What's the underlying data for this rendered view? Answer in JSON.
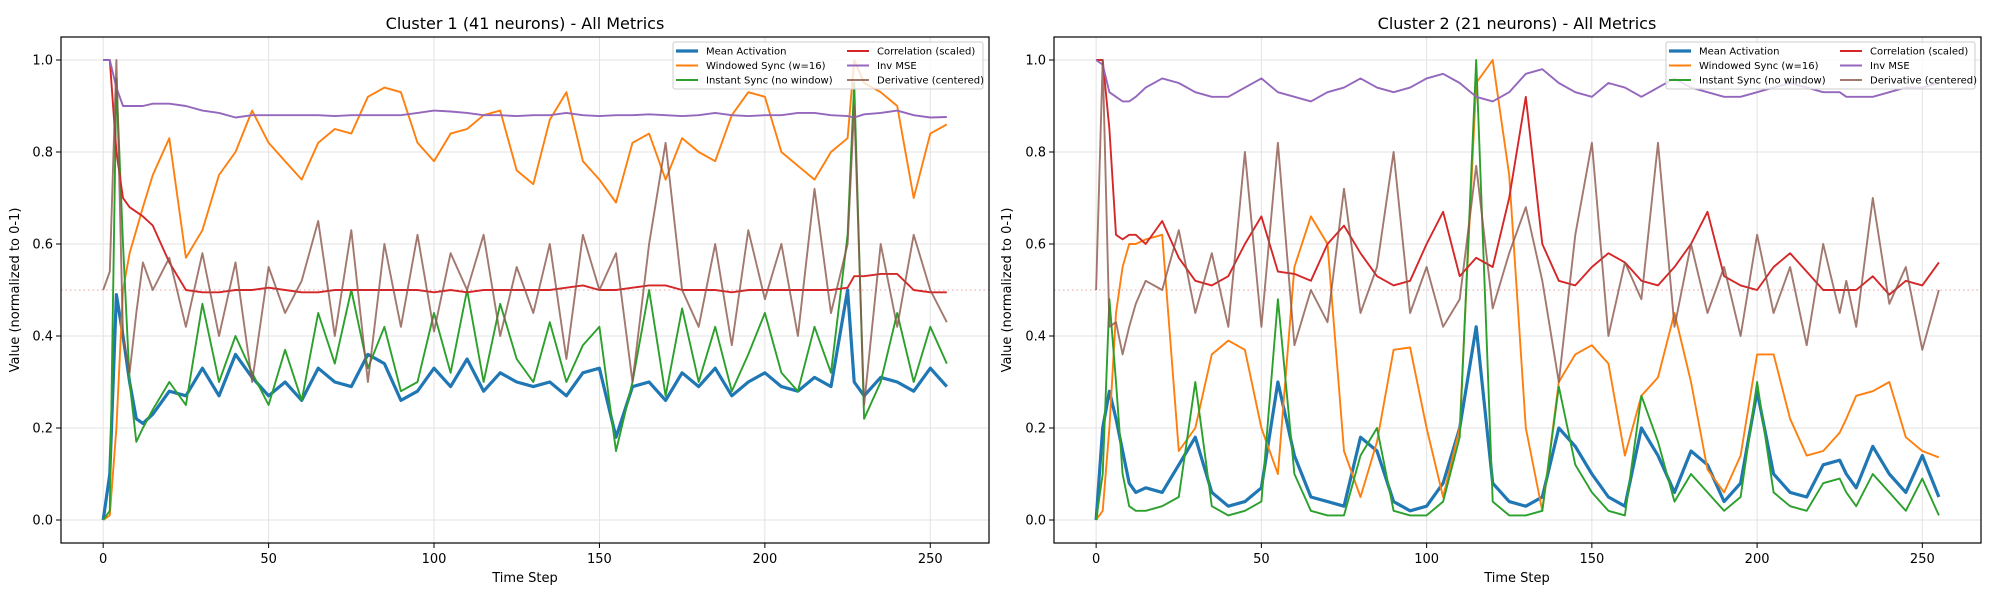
{
  "chart_data": [
    {
      "type": "line",
      "title": "Cluster 1 (41 neurons) - All Metrics",
      "xlabel": "Time Step",
      "ylabel": "Value (normalized to 0-1)",
      "xlim": [
        -12.75,
        267.75
      ],
      "ylim": [
        -0.05,
        1.05
      ],
      "xticks": [
        0,
        50,
        100,
        150,
        200,
        250
      ],
      "yticks": [
        "0.0",
        "0.2",
        "0.4",
        "0.6",
        "0.8",
        "1.0"
      ],
      "grid": true,
      "legend_position": "top-right",
      "reference_line": 0.5,
      "x": [
        0,
        2,
        4,
        6,
        8,
        10,
        12,
        15,
        20,
        25,
        30,
        35,
        40,
        45,
        50,
        55,
        60,
        65,
        70,
        75,
        80,
        85,
        90,
        95,
        100,
        105,
        110,
        115,
        120,
        125,
        130,
        135,
        140,
        145,
        150,
        155,
        160,
        165,
        170,
        175,
        180,
        185,
        190,
        195,
        200,
        205,
        210,
        215,
        220,
        225,
        227,
        230,
        235,
        240,
        245,
        250,
        255
      ],
      "series": [
        {
          "name": "Mean Activation",
          "color": "#1f77b4",
          "values": [
            0,
            0.1,
            0.49,
            0.4,
            0.3,
            0.22,
            0.21,
            0.23,
            0.28,
            0.27,
            0.33,
            0.27,
            0.36,
            0.31,
            0.27,
            0.3,
            0.26,
            0.33,
            0.3,
            0.29,
            0.36,
            0.34,
            0.26,
            0.28,
            0.33,
            0.29,
            0.35,
            0.28,
            0.32,
            0.3,
            0.29,
            0.3,
            0.27,
            0.32,
            0.33,
            0.18,
            0.29,
            0.3,
            0.26,
            0.32,
            0.29,
            0.33,
            0.27,
            0.3,
            0.32,
            0.29,
            0.28,
            0.31,
            0.29,
            0.5,
            0.3,
            0.27,
            0.31,
            0.3,
            0.28,
            0.33,
            0.29
          ]
        },
        {
          "name": "Windowed Sync (w=16)",
          "color": "#ff7f0e",
          "values": [
            0,
            0.01,
            0.2,
            0.5,
            0.58,
            0.63,
            0.68,
            0.75,
            0.83,
            0.57,
            0.63,
            0.75,
            0.8,
            0.89,
            0.82,
            0.78,
            0.74,
            0.82,
            0.85,
            0.84,
            0.92,
            0.94,
            0.93,
            0.82,
            0.78,
            0.84,
            0.85,
            0.88,
            0.89,
            0.76,
            0.73,
            0.87,
            0.93,
            0.78,
            0.74,
            0.69,
            0.82,
            0.84,
            0.74,
            0.83,
            0.8,
            0.78,
            0.88,
            0.93,
            0.92,
            0.8,
            0.77,
            0.74,
            0.8,
            0.83,
            1.0,
            0.95,
            0.93,
            0.9,
            0.7,
            0.84,
            0.86
          ]
        },
        {
          "name": "Instant Sync (no window)",
          "color": "#2ca02c",
          "values": [
            0,
            0.02,
            0.96,
            0.6,
            0.3,
            0.17,
            0.2,
            0.24,
            0.3,
            0.25,
            0.47,
            0.3,
            0.4,
            0.32,
            0.25,
            0.37,
            0.26,
            0.45,
            0.34,
            0.5,
            0.33,
            0.42,
            0.28,
            0.3,
            0.45,
            0.32,
            0.5,
            0.3,
            0.47,
            0.35,
            0.3,
            0.43,
            0.3,
            0.38,
            0.42,
            0.15,
            0.3,
            0.5,
            0.27,
            0.46,
            0.3,
            0.42,
            0.28,
            0.36,
            0.45,
            0.32,
            0.28,
            0.42,
            0.32,
            0.62,
            0.95,
            0.22,
            0.3,
            0.45,
            0.3,
            0.42,
            0.34
          ]
        },
        {
          "name": "Correlation (scaled)",
          "color": "#d62728",
          "values": [
            1,
            1,
            0.8,
            0.7,
            0.68,
            0.67,
            0.66,
            0.64,
            0.56,
            0.5,
            0.495,
            0.495,
            0.5,
            0.5,
            0.505,
            0.5,
            0.495,
            0.495,
            0.5,
            0.5,
            0.5,
            0.5,
            0.5,
            0.5,
            0.495,
            0.5,
            0.495,
            0.5,
            0.5,
            0.5,
            0.5,
            0.5,
            0.505,
            0.51,
            0.5,
            0.5,
            0.505,
            0.51,
            0.51,
            0.5,
            0.5,
            0.5,
            0.495,
            0.5,
            0.5,
            0.5,
            0.5,
            0.5,
            0.5,
            0.505,
            0.53,
            0.53,
            0.535,
            0.535,
            0.5,
            0.495,
            0.495
          ]
        },
        {
          "name": "Inv MSE",
          "color": "#9467bd",
          "values": [
            1,
            1,
            0.94,
            0.9,
            0.9,
            0.9,
            0.9,
            0.905,
            0.905,
            0.9,
            0.89,
            0.885,
            0.875,
            0.88,
            0.88,
            0.88,
            0.88,
            0.88,
            0.878,
            0.88,
            0.88,
            0.88,
            0.88,
            0.885,
            0.89,
            0.888,
            0.885,
            0.88,
            0.88,
            0.878,
            0.88,
            0.88,
            0.885,
            0.88,
            0.878,
            0.88,
            0.88,
            0.882,
            0.88,
            0.878,
            0.88,
            0.885,
            0.88,
            0.878,
            0.88,
            0.88,
            0.885,
            0.885,
            0.88,
            0.878,
            0.875,
            0.882,
            0.885,
            0.89,
            0.88,
            0.875,
            0.876
          ]
        },
        {
          "name": "Derivative (centered)",
          "color": "#8c564b",
          "values": [
            0.5,
            0.54,
            1.0,
            0.4,
            0.32,
            0.45,
            0.56,
            0.5,
            0.57,
            0.42,
            0.58,
            0.4,
            0.56,
            0.3,
            0.55,
            0.45,
            0.52,
            0.65,
            0.4,
            0.63,
            0.3,
            0.6,
            0.42,
            0.62,
            0.41,
            0.58,
            0.5,
            0.62,
            0.4,
            0.55,
            0.45,
            0.6,
            0.35,
            0.62,
            0.5,
            0.58,
            0.3,
            0.6,
            0.82,
            0.5,
            0.42,
            0.6,
            0.38,
            0.63,
            0.48,
            0.6,
            0.4,
            0.72,
            0.45,
            0.6,
            0.9,
            0.25,
            0.6,
            0.42,
            0.62,
            0.5,
            0.43
          ]
        }
      ]
    },
    {
      "type": "line",
      "title": "Cluster 2 (21 neurons) - All Metrics",
      "xlabel": "Time Step",
      "ylabel": "Value (normalized to 0-1)",
      "xlim": [
        -12.75,
        267.75
      ],
      "ylim": [
        -0.05,
        1.05
      ],
      "xticks": [
        0,
        50,
        100,
        150,
        200,
        250
      ],
      "yticks": [
        "0.0",
        "0.2",
        "0.4",
        "0.6",
        "0.8",
        "1.0"
      ],
      "grid": true,
      "legend_position": "top-right",
      "reference_line": 0.5,
      "x": [
        0,
        2,
        4,
        6,
        8,
        10,
        12,
        15,
        20,
        25,
        30,
        35,
        40,
        45,
        50,
        55,
        60,
        65,
        70,
        75,
        80,
        85,
        90,
        95,
        100,
        105,
        110,
        115,
        120,
        125,
        130,
        135,
        140,
        145,
        150,
        155,
        160,
        165,
        170,
        175,
        180,
        185,
        190,
        195,
        200,
        205,
        210,
        215,
        220,
        225,
        227,
        230,
        235,
        240,
        245,
        250,
        255
      ],
      "series": [
        {
          "name": "Mean Activation",
          "color": "#1f77b4",
          "values": [
            0,
            0.2,
            0.28,
            0.22,
            0.15,
            0.08,
            0.06,
            0.07,
            0.06,
            0.12,
            0.18,
            0.06,
            0.03,
            0.04,
            0.07,
            0.3,
            0.14,
            0.05,
            0.04,
            0.03,
            0.18,
            0.15,
            0.04,
            0.02,
            0.03,
            0.08,
            0.2,
            0.42,
            0.08,
            0.04,
            0.03,
            0.05,
            0.2,
            0.16,
            0.1,
            0.05,
            0.03,
            0.2,
            0.14,
            0.06,
            0.15,
            0.12,
            0.04,
            0.08,
            0.28,
            0.1,
            0.06,
            0.05,
            0.12,
            0.13,
            0.1,
            0.07,
            0.16,
            0.1,
            0.06,
            0.14,
            0.05
          ]
        },
        {
          "name": "Windowed Sync (w=16)",
          "color": "#ff7f0e",
          "values": [
            0,
            0.02,
            0.2,
            0.45,
            0.55,
            0.6,
            0.6,
            0.61,
            0.62,
            0.15,
            0.2,
            0.36,
            0.39,
            0.37,
            0.2,
            0.1,
            0.55,
            0.66,
            0.6,
            0.15,
            0.05,
            0.17,
            0.37,
            0.375,
            0.2,
            0.05,
            0.2,
            0.95,
            1.0,
            0.75,
            0.2,
            0.02,
            0.3,
            0.36,
            0.38,
            0.34,
            0.14,
            0.27,
            0.31,
            0.45,
            0.3,
            0.11,
            0.06,
            0.14,
            0.36,
            0.36,
            0.22,
            0.14,
            0.15,
            0.19,
            0.22,
            0.27,
            0.28,
            0.3,
            0.18,
            0.15,
            0.136
          ]
        },
        {
          "name": "Instant Sync (no window)",
          "color": "#2ca02c",
          "values": [
            0,
            0.1,
            0.48,
            0.3,
            0.1,
            0.03,
            0.02,
            0.02,
            0.03,
            0.05,
            0.3,
            0.03,
            0.01,
            0.02,
            0.04,
            0.48,
            0.1,
            0.02,
            0.01,
            0.01,
            0.14,
            0.2,
            0.02,
            0.01,
            0.01,
            0.04,
            0.18,
            1.0,
            0.04,
            0.01,
            0.01,
            0.02,
            0.29,
            0.12,
            0.06,
            0.02,
            0.01,
            0.27,
            0.17,
            0.04,
            0.1,
            0.06,
            0.02,
            0.05,
            0.3,
            0.06,
            0.03,
            0.02,
            0.08,
            0.09,
            0.06,
            0.03,
            0.1,
            0.06,
            0.02,
            0.09,
            0.01
          ]
        },
        {
          "name": "Correlation (scaled)",
          "color": "#d62728",
          "values": [
            1,
            1,
            0.85,
            0.62,
            0.61,
            0.62,
            0.62,
            0.6,
            0.65,
            0.57,
            0.52,
            0.51,
            0.53,
            0.6,
            0.66,
            0.54,
            0.535,
            0.52,
            0.6,
            0.64,
            0.58,
            0.53,
            0.51,
            0.52,
            0.6,
            0.67,
            0.53,
            0.57,
            0.55,
            0.7,
            0.92,
            0.6,
            0.52,
            0.51,
            0.55,
            0.58,
            0.56,
            0.52,
            0.51,
            0.55,
            0.6,
            0.67,
            0.53,
            0.51,
            0.5,
            0.55,
            0.58,
            0.54,
            0.5,
            0.5,
            0.5,
            0.5,
            0.53,
            0.49,
            0.52,
            0.51,
            0.56
          ]
        },
        {
          "name": "Inv MSE",
          "color": "#9467bd",
          "values": [
            1,
            0.99,
            0.93,
            0.92,
            0.91,
            0.91,
            0.92,
            0.94,
            0.96,
            0.95,
            0.93,
            0.92,
            0.92,
            0.94,
            0.96,
            0.93,
            0.92,
            0.91,
            0.93,
            0.94,
            0.96,
            0.94,
            0.93,
            0.94,
            0.96,
            0.97,
            0.95,
            0.92,
            0.91,
            0.93,
            0.97,
            0.98,
            0.95,
            0.93,
            0.92,
            0.95,
            0.94,
            0.92,
            0.94,
            0.96,
            0.94,
            0.93,
            0.92,
            0.92,
            0.93,
            0.94,
            0.95,
            0.94,
            0.93,
            0.93,
            0.92,
            0.92,
            0.92,
            0.93,
            0.94,
            0.94,
            0.95
          ]
        },
        {
          "name": "Derivative (centered)",
          "color": "#8c564b",
          "values": [
            0.5,
            1.0,
            0.42,
            0.43,
            0.36,
            0.42,
            0.47,
            0.52,
            0.5,
            0.63,
            0.45,
            0.58,
            0.42,
            0.8,
            0.42,
            0.82,
            0.38,
            0.5,
            0.43,
            0.72,
            0.45,
            0.55,
            0.8,
            0.45,
            0.55,
            0.42,
            0.48,
            0.77,
            0.46,
            0.58,
            0.68,
            0.52,
            0.3,
            0.62,
            0.82,
            0.4,
            0.56,
            0.48,
            0.82,
            0.42,
            0.6,
            0.45,
            0.55,
            0.4,
            0.62,
            0.45,
            0.55,
            0.38,
            0.6,
            0.45,
            0.52,
            0.42,
            0.7,
            0.47,
            0.55,
            0.37,
            0.5
          ]
        }
      ]
    }
  ]
}
